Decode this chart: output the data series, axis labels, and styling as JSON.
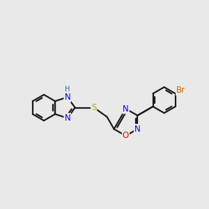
{
  "background_color": "#e9e9e9",
  "bond_color": "#1a1a1a",
  "atom_colors": {
    "N": "#0000ee",
    "O": "#ee0000",
    "S": "#bbaa00",
    "Br": "#cc6600",
    "H": "#226688"
  },
  "bond_width": 1.6,
  "font_size": 8.5,
  "fig_width": 3.0,
  "fig_height": 3.0
}
